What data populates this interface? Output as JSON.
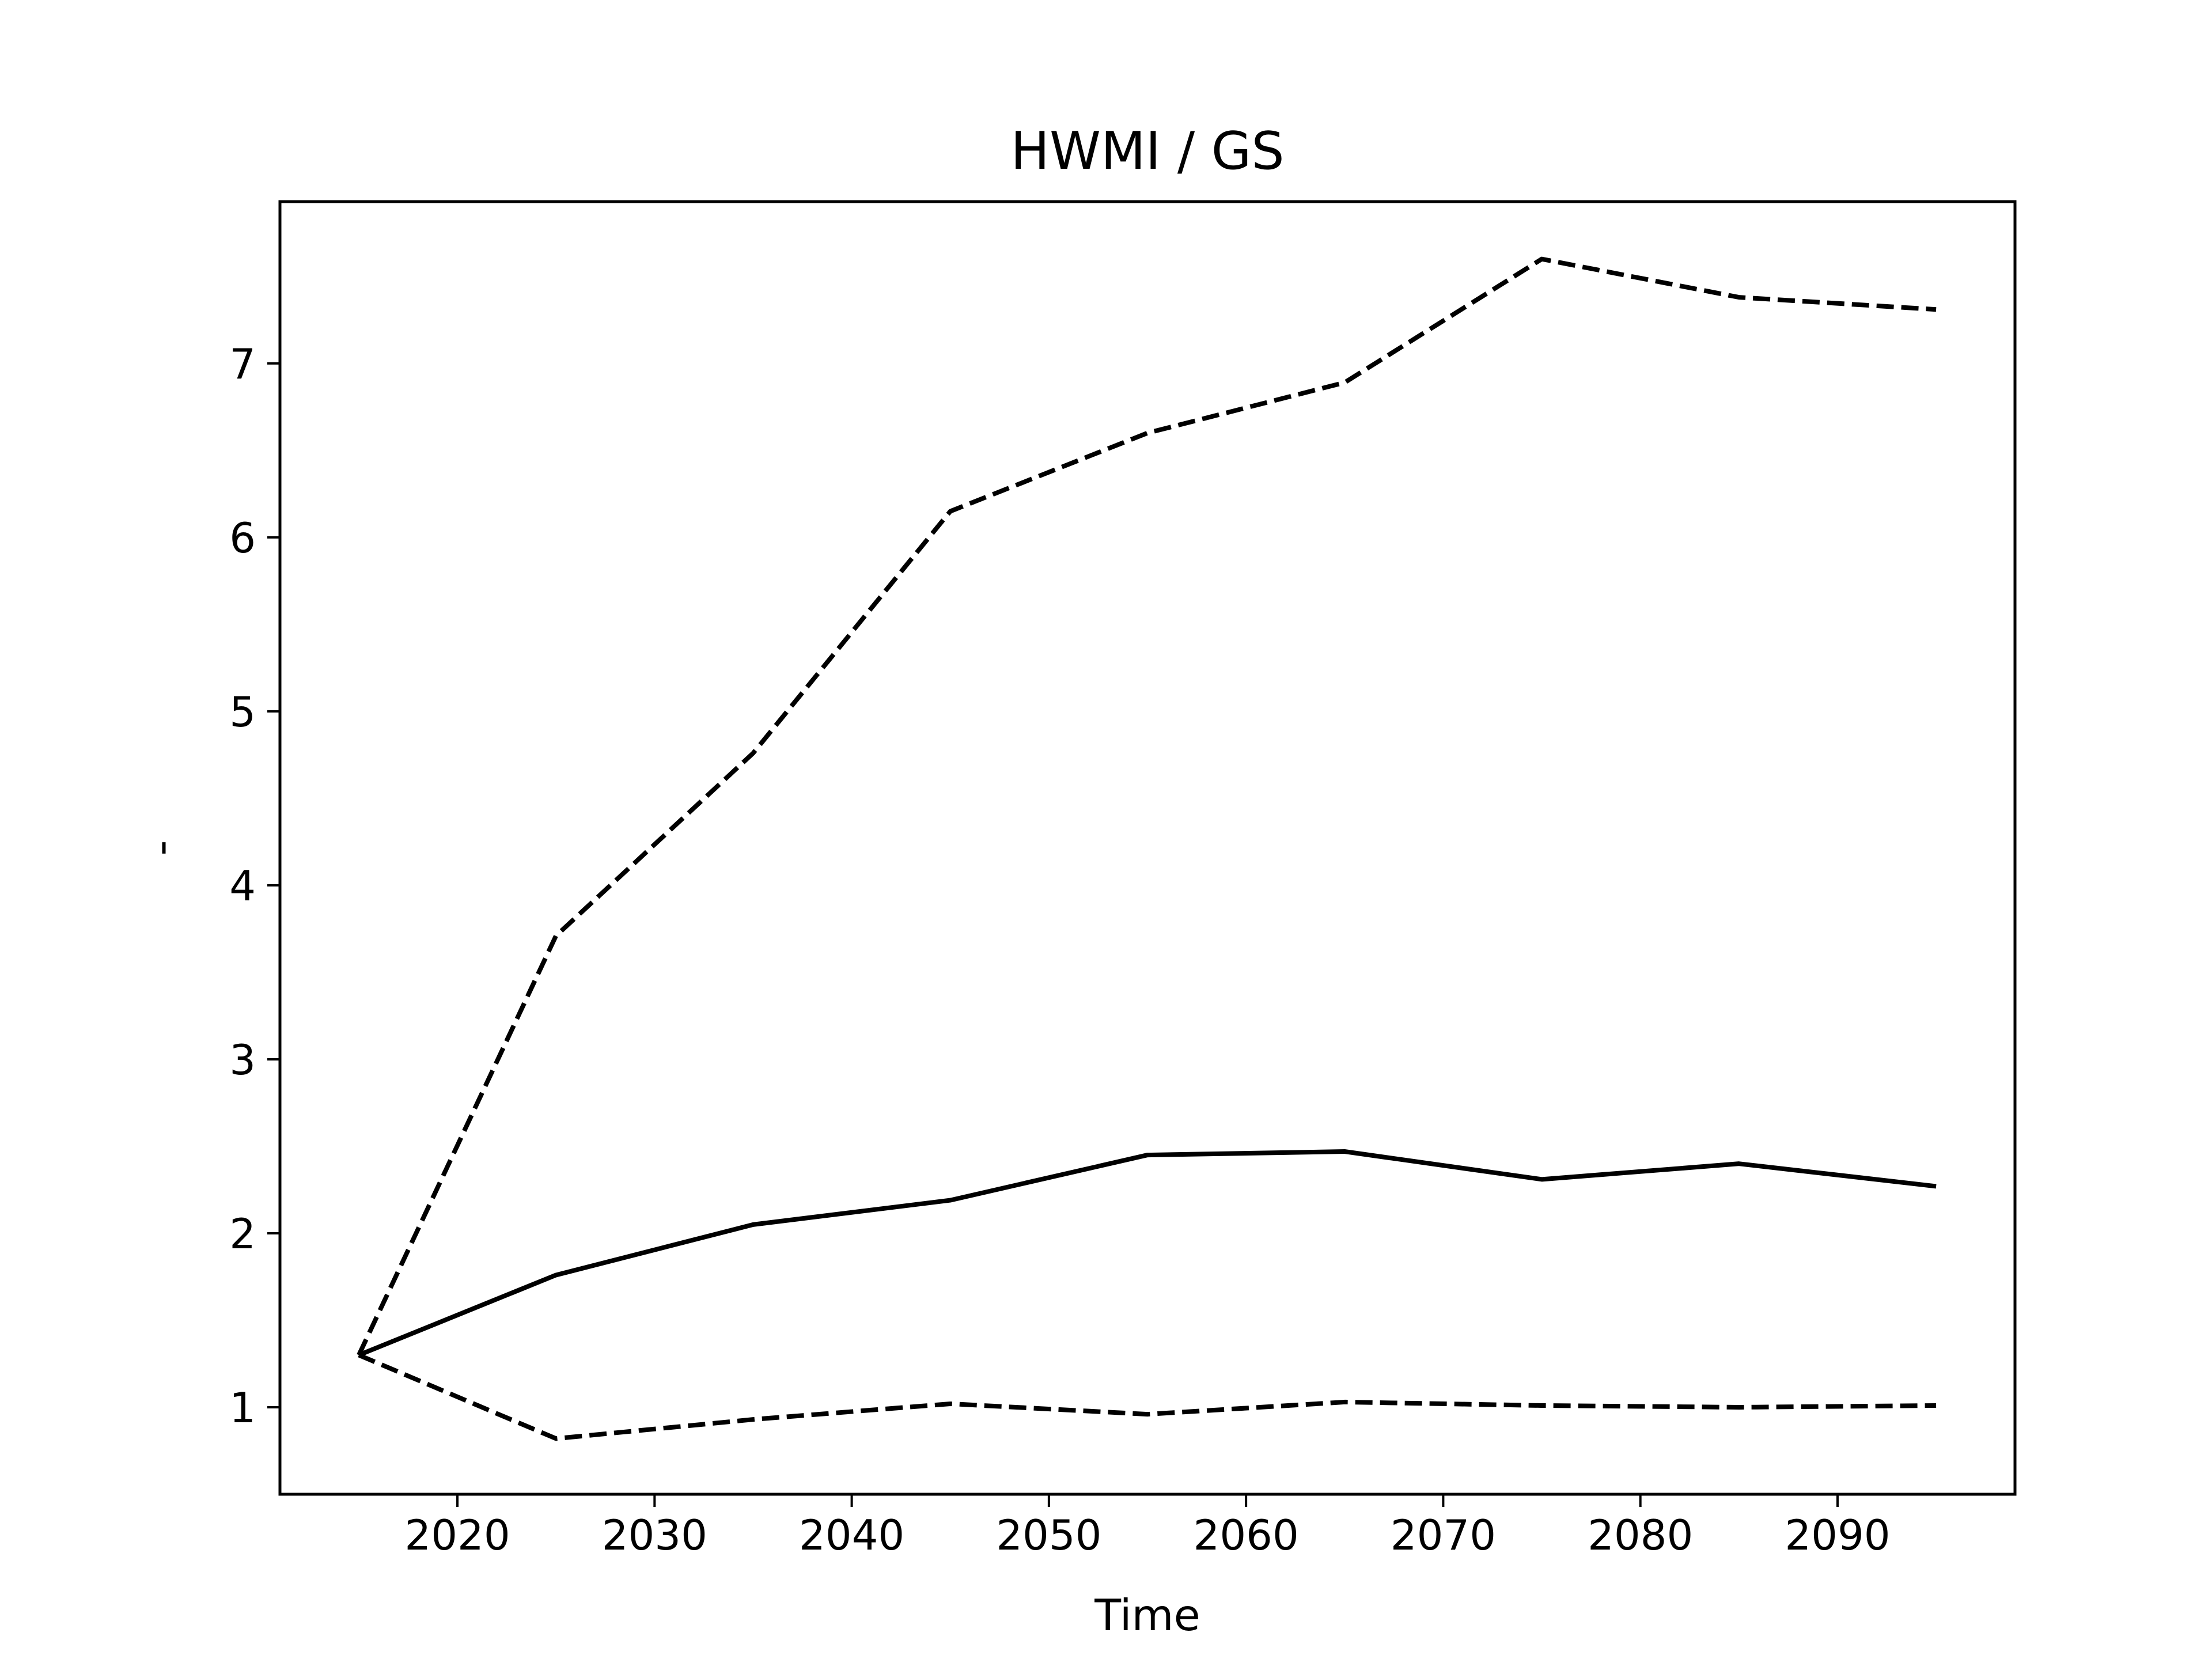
{
  "chart_data": {
    "type": "line",
    "title": "HWMI / GS",
    "xlabel": "Time",
    "ylabel": "-",
    "xlim": [
      2011,
      2099
    ],
    "ylim": [
      0.5,
      7.93
    ],
    "xticks": [
      2020,
      2030,
      2040,
      2050,
      2060,
      2070,
      2080,
      2090
    ],
    "yticks": [
      1,
      2,
      3,
      4,
      5,
      6,
      7
    ],
    "grid": false,
    "x": [
      2015,
      2025,
      2035,
      2045,
      2055,
      2065,
      2075,
      2085,
      2095
    ],
    "series": [
      {
        "style": "solid",
        "color": "#000000",
        "values": [
          1.3,
          1.76,
          2.05,
          2.19,
          2.45,
          2.47,
          2.31,
          2.4,
          2.27
        ]
      },
      {
        "style": "dashed",
        "color": "#000000",
        "values": [
          1.3,
          3.71,
          4.76,
          6.15,
          6.6,
          6.89,
          7.6,
          7.38,
          7.31
        ]
      },
      {
        "style": "dashed",
        "color": "#000000",
        "values": [
          1.3,
          0.82,
          0.93,
          1.02,
          0.96,
          1.03,
          1.01,
          1.0,
          1.01
        ]
      }
    ]
  }
}
